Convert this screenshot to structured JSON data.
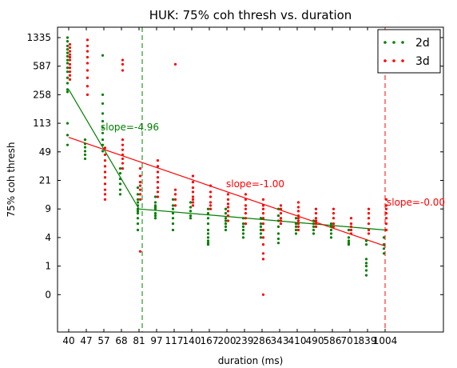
{
  "chart_data": {
    "type": "scatter",
    "title": "HUK: 75% coh thresh vs. duration",
    "xlabel": "duration (ms)",
    "ylabel": "75% coh thresh",
    "x_categories": [
      "40",
      "47",
      "57",
      "68",
      "81",
      "97",
      "117",
      "140",
      "167",
      "200",
      "239",
      "286",
      "343",
      "410",
      "490",
      "586",
      "701",
      "839",
      "1004"
    ],
    "y_ticks": [
      1335,
      587,
      258,
      113,
      49,
      21,
      9,
      4,
      1,
      0
    ],
    "grid": false,
    "legend_position": "top-right",
    "colors": {
      "2d": "#007f00",
      "3d": "#ff0000"
    },
    "series": [
      {
        "name": "2d",
        "color": "#007f00",
        "points": [
          {
            "x": 0,
            "y": [
              1335,
              1200,
              1050,
              950,
              860,
              780,
              700,
              640,
              560,
              500,
              420,
              360,
              300,
              280,
              113,
              80,
              60
            ]
          },
          {
            "x": 1,
            "y": [
              70,
              62,
              56,
              50,
              45,
              40
            ]
          },
          {
            "x": 2,
            "y": [
              800,
              258,
              200,
              150,
              120,
              100,
              85,
              70,
              60,
              50
            ]
          },
          {
            "x": 3,
            "y": [
              30,
              26,
              22,
              19,
              16,
              14
            ]
          },
          {
            "x": 4,
            "y": [
              17,
              14,
              12,
              11,
              10,
              9,
              8.5,
              8,
              7,
              6,
              5
            ]
          },
          {
            "x": 5,
            "y": [
              13,
              11,
              10,
              9.5,
              9,
              8,
              7.5,
              7
            ]
          },
          {
            "x": 6,
            "y": [
              12,
              10,
              9,
              8,
              7,
              6,
              5
            ]
          },
          {
            "x": 7,
            "y": [
              11,
              9.5,
              8.5,
              7.5,
              7
            ]
          },
          {
            "x": 8,
            "y": [
              9,
              8,
              7,
              6,
              5,
              4.5,
              4,
              3.5,
              3.2,
              3
            ]
          },
          {
            "x": 9,
            "y": [
              9,
              8,
              7,
              6.5,
              6,
              5.5,
              5
            ]
          },
          {
            "x": 10,
            "y": [
              7,
              6,
              5.5,
              5,
              4.5,
              4
            ]
          },
          {
            "x": 11,
            "y": [
              7,
              6,
              5.5,
              5,
              4.5,
              4
            ]
          },
          {
            "x": 12,
            "y": [
              9,
              7.5,
              6.5,
              5.5,
              4.5,
              3.8,
              3.2
            ]
          },
          {
            "x": 13,
            "y": [
              7,
              6,
              5.5,
              5,
              4.5
            ]
          },
          {
            "x": 14,
            "y": [
              6.5,
              6,
              5.5,
              5,
              4.5
            ]
          },
          {
            "x": 15,
            "y": [
              6,
              5.5,
              5,
              4.5,
              4
            ]
          },
          {
            "x": 16,
            "y": [
              5,
              4,
              3.5,
              3.2,
              3
            ]
          },
          {
            "x": 17,
            "y": [
              3.5,
              3,
              1.5,
              1.2,
              1,
              0.8,
              0.6
            ]
          },
          {
            "x": 18,
            "y": [
              4,
              3,
              2.5,
              2
            ]
          }
        ],
        "fit": {
          "x": [
            0,
            4,
            18
          ],
          "y": [
            300,
            9,
            5
          ]
        },
        "slope_label": "slope=-4.96"
      },
      {
        "name": "3d",
        "color": "#ff0000",
        "points": [
          {
            "x": 0,
            "y": [
              1100,
              1000,
              900,
              820,
              760,
              700,
              620,
              560,
              500,
              450,
              400
            ]
          },
          {
            "x": 1,
            "y": [
              1250,
              1050,
              900,
              760,
              640,
              520,
              420,
              330,
              258
            ]
          },
          {
            "x": 2,
            "y": [
              55,
              45,
              38,
              32,
              27,
              23,
              19,
              16,
              14,
              12
            ]
          },
          {
            "x": 3,
            "y": [
              700,
              620,
              520,
              70,
              60,
              52,
              45,
              40,
              35,
              30
            ]
          },
          {
            "x": 4,
            "y": [
              30,
              24,
              20,
              18,
              16,
              14,
              12,
              2.2
            ]
          },
          {
            "x": 5,
            "y": [
              38,
              32,
              27,
              23,
              20,
              17,
              15,
              13
            ]
          },
          {
            "x": 6,
            "y": [
              620,
              16,
              14,
              12,
              10
            ]
          },
          {
            "x": 7,
            "y": [
              24,
              20,
              17,
              15,
              13,
              12,
              11,
              10
            ]
          },
          {
            "x": 8,
            "y": [
              18,
              15,
              13,
              11,
              10,
              9
            ]
          },
          {
            "x": 9,
            "y": [
              14,
              12,
              10.5,
              9.5,
              8.5,
              7.5,
              6.5
            ]
          },
          {
            "x": 10,
            "y": [
              14,
              12,
              10,
              9,
              8,
              7,
              6
            ]
          },
          {
            "x": 11,
            "y": [
              12,
              10,
              9,
              8,
              7,
              6,
              5,
              4,
              3,
              2,
              1.5,
              0
            ]
          },
          {
            "x": 12,
            "y": [
              10,
              9,
              8,
              7,
              6.5,
              6
            ]
          },
          {
            "x": 13,
            "y": [
              11,
              9.5,
              8.5,
              7.5,
              7,
              6.5,
              6,
              5.5,
              5
            ]
          },
          {
            "x": 14,
            "y": [
              9,
              8,
              7,
              6.5,
              6,
              5.5
            ]
          },
          {
            "x": 15,
            "y": [
              9,
              8,
              7,
              6,
              5.5
            ]
          },
          {
            "x": 16,
            "y": [
              7,
              6,
              5.5,
              5,
              4.5
            ]
          },
          {
            "x": 17,
            "y": [
              9,
              8,
              7,
              6,
              5,
              4.5
            ]
          },
          {
            "x": 18,
            "y": [
              12,
              10,
              9,
              8,
              7,
              6,
              5
            ]
          }
        ],
        "fit": {
          "x": [
            0,
            18
          ],
          "y": [
            75,
            2.8
          ]
        },
        "slope_label": "slope=-1.00",
        "slope_label_2": "slope=-0.00"
      }
    ],
    "vlines": [
      {
        "x": 4.0,
        "color": "#007f00",
        "style": "dashed"
      },
      {
        "x": 18.0,
        "color": "#ff0000",
        "style": "dashed"
      }
    ]
  }
}
